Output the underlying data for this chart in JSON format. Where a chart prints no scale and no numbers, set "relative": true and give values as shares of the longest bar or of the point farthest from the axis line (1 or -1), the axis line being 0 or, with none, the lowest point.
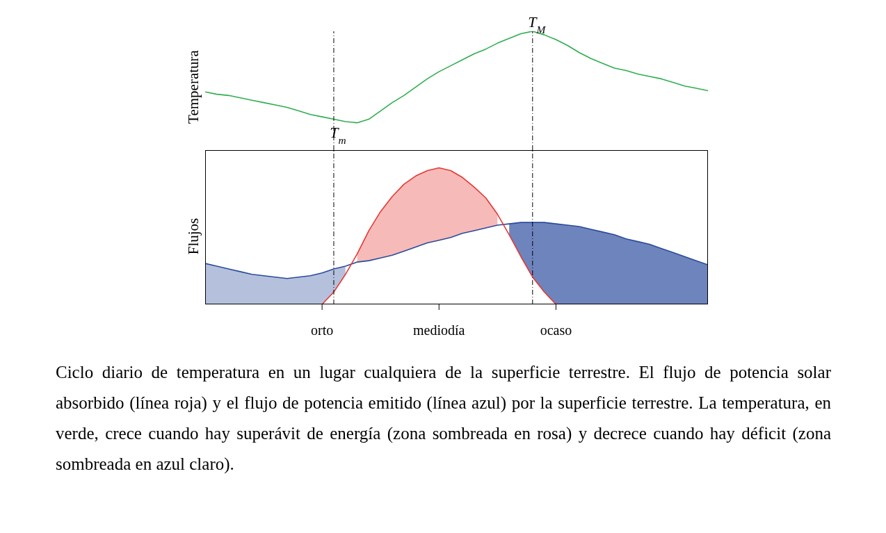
{
  "chart_data": [
    {
      "type": "line",
      "ylabel": "Temperatura",
      "relative": true,
      "categories": [
        null,
        null,
        null,
        null,
        null,
        null,
        null,
        null,
        null,
        null,
        null,
        null,
        null,
        null,
        null,
        null,
        null,
        null,
        null,
        null,
        null,
        null,
        null,
        null,
        null,
        null,
        null,
        null,
        null,
        null,
        null,
        null,
        null,
        null,
        null,
        null,
        null,
        null,
        null,
        null,
        null,
        null,
        null,
        null
      ],
      "series": [
        {
          "color": "#2eae4f",
          "values": [
            0.49,
            0.47,
            0.46,
            0.44,
            0.42,
            0.4,
            0.38,
            0.36,
            0.33,
            0.3,
            0.28,
            0.26,
            0.24,
            0.23,
            0.26,
            0.33,
            0.4,
            0.46,
            0.53,
            0.6,
            0.66,
            0.71,
            0.76,
            0.81,
            0.85,
            0.9,
            0.94,
            0.98,
            1,
            0.97,
            0.93,
            0.88,
            0.82,
            0.77,
            0.73,
            0.69,
            0.67,
            0.64,
            0.62,
            0.6,
            0.57,
            0.54,
            0.52,
            0.5
          ]
        }
      ],
      "annotations": [
        {
          "text": "T$_{m}$",
          "y": 0.26
        },
        {
          "text": "T$_{M}$",
          "y": 1
        }
      ]
    },
    {
      "type": "line",
      "ylabel": "Flujos",
      "relative": true,
      "categories": [
        null,
        null,
        null,
        null,
        null,
        null,
        null,
        null,
        null,
        null,
        "orto",
        null,
        null,
        null,
        null,
        null,
        null,
        null,
        null,
        null,
        "mediodía",
        null,
        null,
        null,
        null,
        null,
        null,
        null,
        null,
        null,
        "ocaso",
        null,
        null,
        null,
        null,
        null,
        null,
        null,
        null,
        null,
        null,
        null,
        null,
        null
      ],
      "series": [
        {
          "color": "#e53935",
          "values": [
            null,
            null,
            null,
            null,
            null,
            null,
            null,
            null,
            null,
            null,
            0,
            0.09,
            0.22,
            0.37,
            0.54,
            0.68,
            0.79,
            0.88,
            0.94,
            0.98,
            1,
            0.98,
            0.93,
            0.86,
            0.78,
            0.66,
            0.51,
            0.35,
            0.2,
            0.09,
            0,
            null,
            null,
            null,
            null,
            null,
            null,
            null,
            null,
            null,
            null,
            null,
            null,
            null
          ],
          "lower": [
            null,
            null,
            null,
            null,
            null,
            null,
            null,
            null,
            null,
            null,
            null,
            null,
            null,
            0.31,
            0.32,
            0.34,
            0.36,
            0.39,
            0.42,
            0.45,
            0.47,
            0.49,
            0.52,
            0.54,
            0.56,
            0.58,
            null,
            null,
            null,
            null,
            null,
            null,
            null,
            null,
            null,
            null,
            null,
            null,
            null,
            null,
            null,
            null,
            null,
            null
          ],
          "upper": [
            null,
            null,
            null,
            null,
            null,
            null,
            null,
            null,
            null,
            null,
            null,
            null,
            null,
            0.37,
            0.54,
            0.68,
            0.79,
            0.88,
            0.94,
            0.98,
            1,
            0.98,
            0.93,
            0.86,
            0.78,
            0.66,
            null,
            null,
            null,
            null,
            null,
            null,
            null,
            null,
            null,
            null,
            null,
            null,
            null,
            null,
            null,
            null,
            null,
            null
          ]
        },
        {
          "color": "#2a4a9c",
          "values": [
            0.3,
            0.28,
            0.26,
            0.24,
            0.22,
            0.21,
            0.2,
            0.19,
            0.2,
            0.21,
            0.23,
            0.26,
            0.28,
            0.31,
            0.32,
            0.34,
            0.36,
            0.39,
            0.42,
            0.45,
            0.47,
            0.49,
            0.52,
            0.54,
            0.56,
            0.58,
            0.59,
            0.6,
            0.6,
            0.6,
            0.59,
            0.58,
            0.57,
            0.55,
            0.53,
            0.51,
            0.48,
            0.46,
            0.44,
            0.41,
            0.38,
            0.35,
            0.32,
            0.29
          ],
          "lower": [
            0,
            0,
            0,
            0,
            0,
            0,
            0,
            0,
            0,
            0,
            0,
            0.09,
            0.22,
            null,
            null,
            null,
            null,
            null,
            null,
            null,
            null,
            null,
            null,
            null,
            null,
            null,
            0.51,
            0.35,
            0.2,
            0.09,
            0,
            0,
            0,
            0,
            0,
            0,
            0,
            0,
            0,
            0,
            0,
            0,
            0,
            0
          ],
          "upper": [
            0.3,
            0.28,
            0.26,
            0.24,
            0.22,
            0.21,
            0.2,
            0.19,
            0.2,
            0.21,
            0.23,
            0.26,
            0.28,
            null,
            null,
            null,
            null,
            null,
            null,
            null,
            null,
            null,
            null,
            null,
            null,
            null,
            0.59,
            0.6,
            0.6,
            0.6,
            0.59,
            0.58,
            0.57,
            0.55,
            0.53,
            0.51,
            0.48,
            0.46,
            0.44,
            0.41,
            0.38,
            0.35,
            0.32,
            0.29
          ]
        }
      ],
      "annotations": [
        "Ciclo diario de temperatura en un lugar cualquiera de la superficie terrestre. El flujo de potencia solar absorbido (línea roja) y el flujo de potencia emitido (línea azul) por la superficie terrestre. La temperatura, en verde, crece cuando hay superávit de energía (zona sombreada en rosa) y decrece cuando hay déficit (zona sombreada en azul claro)."
      ]
    }
  ]
}
